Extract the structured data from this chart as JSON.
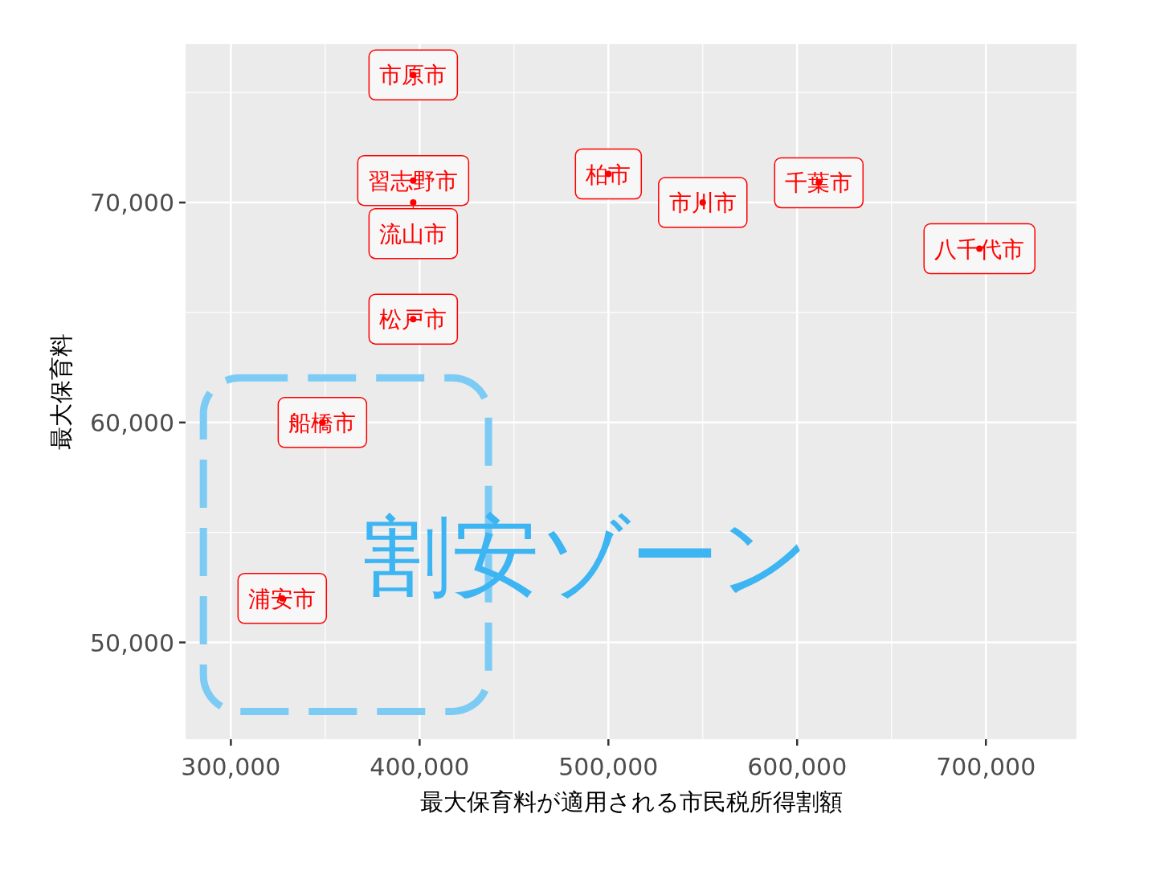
{
  "chart_data": {
    "type": "scatter",
    "xlabel": "最大保育料が適用される市民税所得割額",
    "ylabel": "最大保育料",
    "color": "#ff0000",
    "grid": true,
    "x": [
      396600,
      396600,
      396600,
      500000,
      550000,
      611500,
      696600,
      396600,
      348500,
      327200
    ],
    "values": [
      75800,
      71000,
      70000,
      71300,
      70000,
      70900,
      67900,
      64700,
      60000,
      52000
    ],
    "xlim": [
      276000,
      748000
    ],
    "ylim": [
      45600,
      77200
    ],
    "xticks": [
      {
        "value": 300000,
        "label": "300,000"
      },
      {
        "value": 400000,
        "label": "400,000"
      },
      {
        "value": 500000,
        "label": "500,000"
      },
      {
        "value": 600000,
        "label": "600,000"
      },
      {
        "value": 700000,
        "label": "700,000"
      }
    ],
    "yticks": [
      {
        "value": 50000,
        "label": "50,000"
      },
      {
        "value": 60000,
        "label": "60,000"
      },
      {
        "value": 70000,
        "label": "70,000"
      }
    ],
    "annotations": [
      {
        "text": "市原市",
        "x": 396600,
        "y": 75800
      },
      {
        "text": "習志野市",
        "x": 396600,
        "y": 71000
      },
      {
        "text": "流山市",
        "x": 396600,
        "y": 70000
      },
      {
        "text": "柏市",
        "x": 500000,
        "y": 71300
      },
      {
        "text": "市川市",
        "x": 550000,
        "y": 70000
      },
      {
        "text": "千葉市",
        "x": 611500,
        "y": 70900
      },
      {
        "text": "八千代市",
        "x": 696600,
        "y": 67900
      },
      {
        "text": "松戸市",
        "x": 396600,
        "y": 64700
      },
      {
        "text": "船橋市",
        "x": 348500,
        "y": 60000
      },
      {
        "text": "浦安市",
        "x": 327200,
        "y": 52000
      },
      "割安ゾーン"
    ]
  }
}
